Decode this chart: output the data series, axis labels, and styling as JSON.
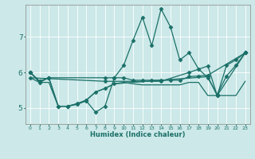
{
  "xlabel": "Humidex (Indice chaleur)",
  "xlim": [
    -0.5,
    23.5
  ],
  "ylim": [
    4.55,
    7.9
  ],
  "yticks": [
    5,
    6,
    7
  ],
  "xticks": [
    0,
    1,
    2,
    3,
    4,
    5,
    6,
    7,
    8,
    9,
    10,
    11,
    12,
    13,
    14,
    15,
    16,
    17,
    18,
    19,
    20,
    21,
    22,
    23
  ],
  "bg_color": "#cce8e8",
  "line_color": "#1a7068",
  "grid_color": "#b8d8d8",
  "figsize": [
    3.2,
    2.0
  ],
  "dpi": 100,
  "lines": [
    {
      "x": [
        0,
        1,
        2,
        3,
        4,
        5,
        6,
        7,
        8,
        9,
        10,
        11,
        12,
        13,
        14,
        15,
        16,
        17,
        18,
        19,
        20,
        21,
        22,
        23
      ],
      "y": [
        6.0,
        5.75,
        5.85,
        5.05,
        5.05,
        5.1,
        5.2,
        4.88,
        5.05,
        5.85,
        6.2,
        6.9,
        7.55,
        6.75,
        7.78,
        7.28,
        6.35,
        6.55,
        6.1,
        5.85,
        5.38,
        5.9,
        6.2,
        6.55
      ],
      "marker": "D",
      "markersize": 2.5,
      "linewidth": 0.9
    },
    {
      "x": [
        0,
        1,
        2,
        8,
        9,
        10,
        11,
        12,
        13,
        14,
        15,
        16,
        17,
        18,
        19,
        23
      ],
      "y": [
        6.0,
        5.75,
        5.85,
        5.85,
        5.85,
        5.85,
        5.78,
        5.78,
        5.78,
        5.78,
        5.78,
        5.78,
        5.88,
        5.9,
        5.92,
        6.55
      ],
      "marker": "D",
      "markersize": 2.5,
      "linewidth": 0.9
    },
    {
      "x": [
        0,
        1,
        2,
        3,
        4,
        5,
        6,
        7,
        8,
        9,
        10,
        11,
        12,
        13,
        14,
        15,
        16,
        17,
        18,
        19,
        20,
        21,
        22,
        23
      ],
      "y": [
        5.85,
        5.72,
        5.72,
        5.05,
        5.05,
        5.12,
        5.22,
        5.45,
        5.55,
        5.68,
        5.72,
        5.68,
        5.65,
        5.65,
        5.65,
        5.65,
        5.65,
        5.72,
        5.72,
        5.35,
        5.35,
        5.35,
        5.35,
        5.75
      ],
      "marker": null,
      "markersize": 0,
      "linewidth": 0.9
    },
    {
      "x": [
        0,
        8,
        14,
        17,
        19,
        20,
        21,
        22,
        23
      ],
      "y": [
        5.85,
        5.75,
        5.75,
        6.0,
        6.18,
        5.35,
        6.2,
        6.35,
        6.55
      ],
      "marker": "D",
      "markersize": 2.5,
      "linewidth": 0.9
    },
    {
      "x": [
        0,
        1,
        2,
        3,
        4,
        5,
        6,
        7,
        8,
        9,
        19,
        20,
        23
      ],
      "y": [
        6.0,
        5.72,
        5.85,
        5.05,
        5.05,
        5.12,
        5.22,
        5.45,
        5.55,
        5.68,
        5.88,
        5.35,
        6.55
      ],
      "marker": "D",
      "markersize": 2.5,
      "linewidth": 0.9
    }
  ]
}
